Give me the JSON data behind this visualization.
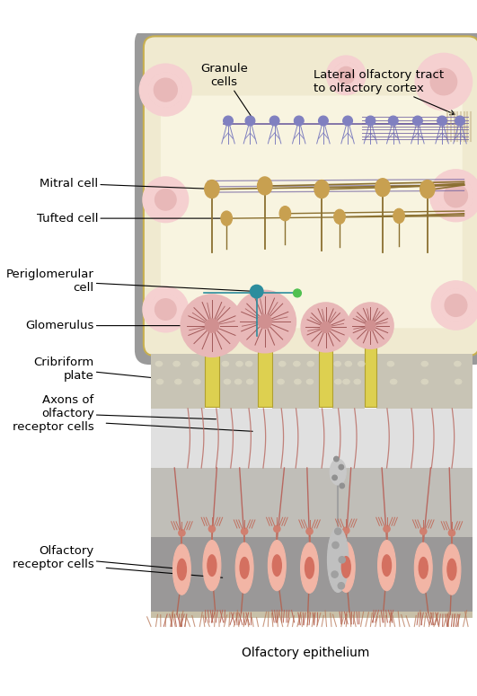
{
  "bg_color": "#ffffff",
  "bulb_bg": "#f0ead0",
  "bulb_bg_inner": "#f8f4e0",
  "bulb_border": "#c8b050",
  "gray_shell": "#9a9a9a",
  "cribriform_color": "#c8c4b5",
  "cribriform_pore": "#d8d4c5",
  "axon_region_color": "#dcdcdc",
  "epith_top_color": "#b0b0b0",
  "epith_mid_color": "#989898",
  "epith_bot_color": "#888888",
  "mucus_color": "#c8b878",
  "cell_body_color": "#f2b5a5",
  "cell_nucleus_color": "#d47060",
  "glom_outer": "#e8b8b8",
  "glom_border": "#c07070",
  "glom_inner": "#c08080",
  "axon_color": "#b86860",
  "dendrite_color": "#c87868",
  "mitral_color": "#c8a050",
  "mitral_border": "#a07830",
  "granule_color": "#8080c0",
  "granule_border": "#6060a0",
  "peri_color": "#2d8d9d",
  "peri_border": "#1d6d7d",
  "tract_color": "#7060a0",
  "gray_cell_color": "#c0c0c0",
  "gray_cell_border": "#909090",
  "label_fs": 9.5,
  "arrow_color": "#000000",
  "labels": {
    "granule_cells": "Granule\ncells",
    "lateral_tract": "Lateral olfactory tract\nto olfactory cortex",
    "mitral_cell": "Mitral cell",
    "tufted_cell": "Tufted cell",
    "periglomerular_cell": "Periglomerular\ncell",
    "glomerulus": "Glomerulus",
    "cribriform_plate": "Cribriform\nplate",
    "axons_label": "Axons of\nolfactory\nreceptor cells",
    "receptor_cells": "Olfactory\nreceptor cells",
    "epithelium": "Olfactory epithelium"
  }
}
